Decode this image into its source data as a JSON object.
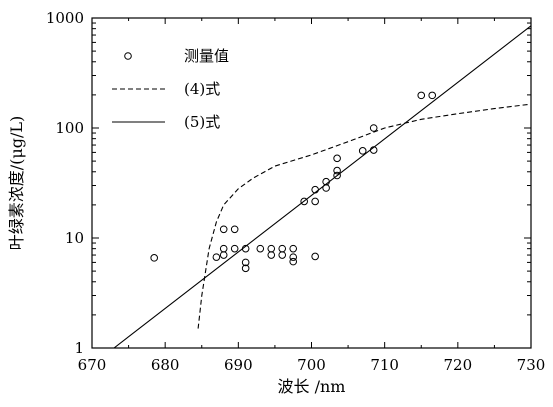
{
  "chart_data": {
    "type": "scatter",
    "title": "",
    "xlabel": "波长 /nm",
    "ylabel": "叶绿素浓度/(μg/L)",
    "xlim": [
      670,
      730
    ],
    "ylim": [
      1,
      1000
    ],
    "yscale": "log",
    "x_ticks": [
      "670",
      "680",
      "690",
      "700",
      "710",
      "720",
      "730"
    ],
    "y_ticks": [
      "1",
      "10",
      "100",
      "1000"
    ],
    "grid": false,
    "legend_position": "top-left",
    "series": [
      {
        "name": "测量值",
        "kind": "points",
        "marker": "open-circle",
        "points": [
          [
            678.5,
            6.6
          ],
          [
            687,
            6.7
          ],
          [
            688,
            8.0
          ],
          [
            688,
            7.0
          ],
          [
            688,
            12.0
          ],
          [
            689.5,
            8.0
          ],
          [
            689.5,
            12.0
          ],
          [
            691,
            8.0
          ],
          [
            691,
            6.0
          ],
          [
            691,
            5.3
          ],
          [
            693,
            8.0
          ],
          [
            694.5,
            8.0
          ],
          [
            694.5,
            7.0
          ],
          [
            696,
            8.0
          ],
          [
            696,
            7.0
          ],
          [
            697.5,
            8.0
          ],
          [
            697.5,
            6.7
          ],
          [
            697.5,
            6.1
          ],
          [
            700.5,
            6.8
          ],
          [
            699,
            21.5
          ],
          [
            700.5,
            21.5
          ],
          [
            700.5,
            27.5
          ],
          [
            702,
            28.5
          ],
          [
            702,
            32.5
          ],
          [
            703.5,
            37
          ],
          [
            703.5,
            41
          ],
          [
            703.5,
            53
          ],
          [
            707,
            62
          ],
          [
            708.5,
            63
          ],
          [
            708.5,
            100
          ],
          [
            715,
            198
          ],
          [
            716.5,
            198
          ]
        ]
      },
      {
        "name": "(4)式",
        "kind": "line",
        "dash": "dashed",
        "points": [
          [
            684.5,
            1.5
          ],
          [
            685,
            3.0
          ],
          [
            686,
            8.0
          ],
          [
            687,
            14
          ],
          [
            688,
            20
          ],
          [
            690,
            28
          ],
          [
            692,
            35
          ],
          [
            695,
            45
          ],
          [
            700,
            57
          ],
          [
            705,
            75
          ],
          [
            710,
            100
          ],
          [
            715,
            120
          ],
          [
            720,
            135
          ],
          [
            725,
            150
          ],
          [
            730,
            165
          ]
        ]
      },
      {
        "name": "(5)式",
        "kind": "line",
        "dash": "solid",
        "points": [
          [
            673,
            1.0
          ],
          [
            730,
            850
          ]
        ]
      }
    ]
  }
}
